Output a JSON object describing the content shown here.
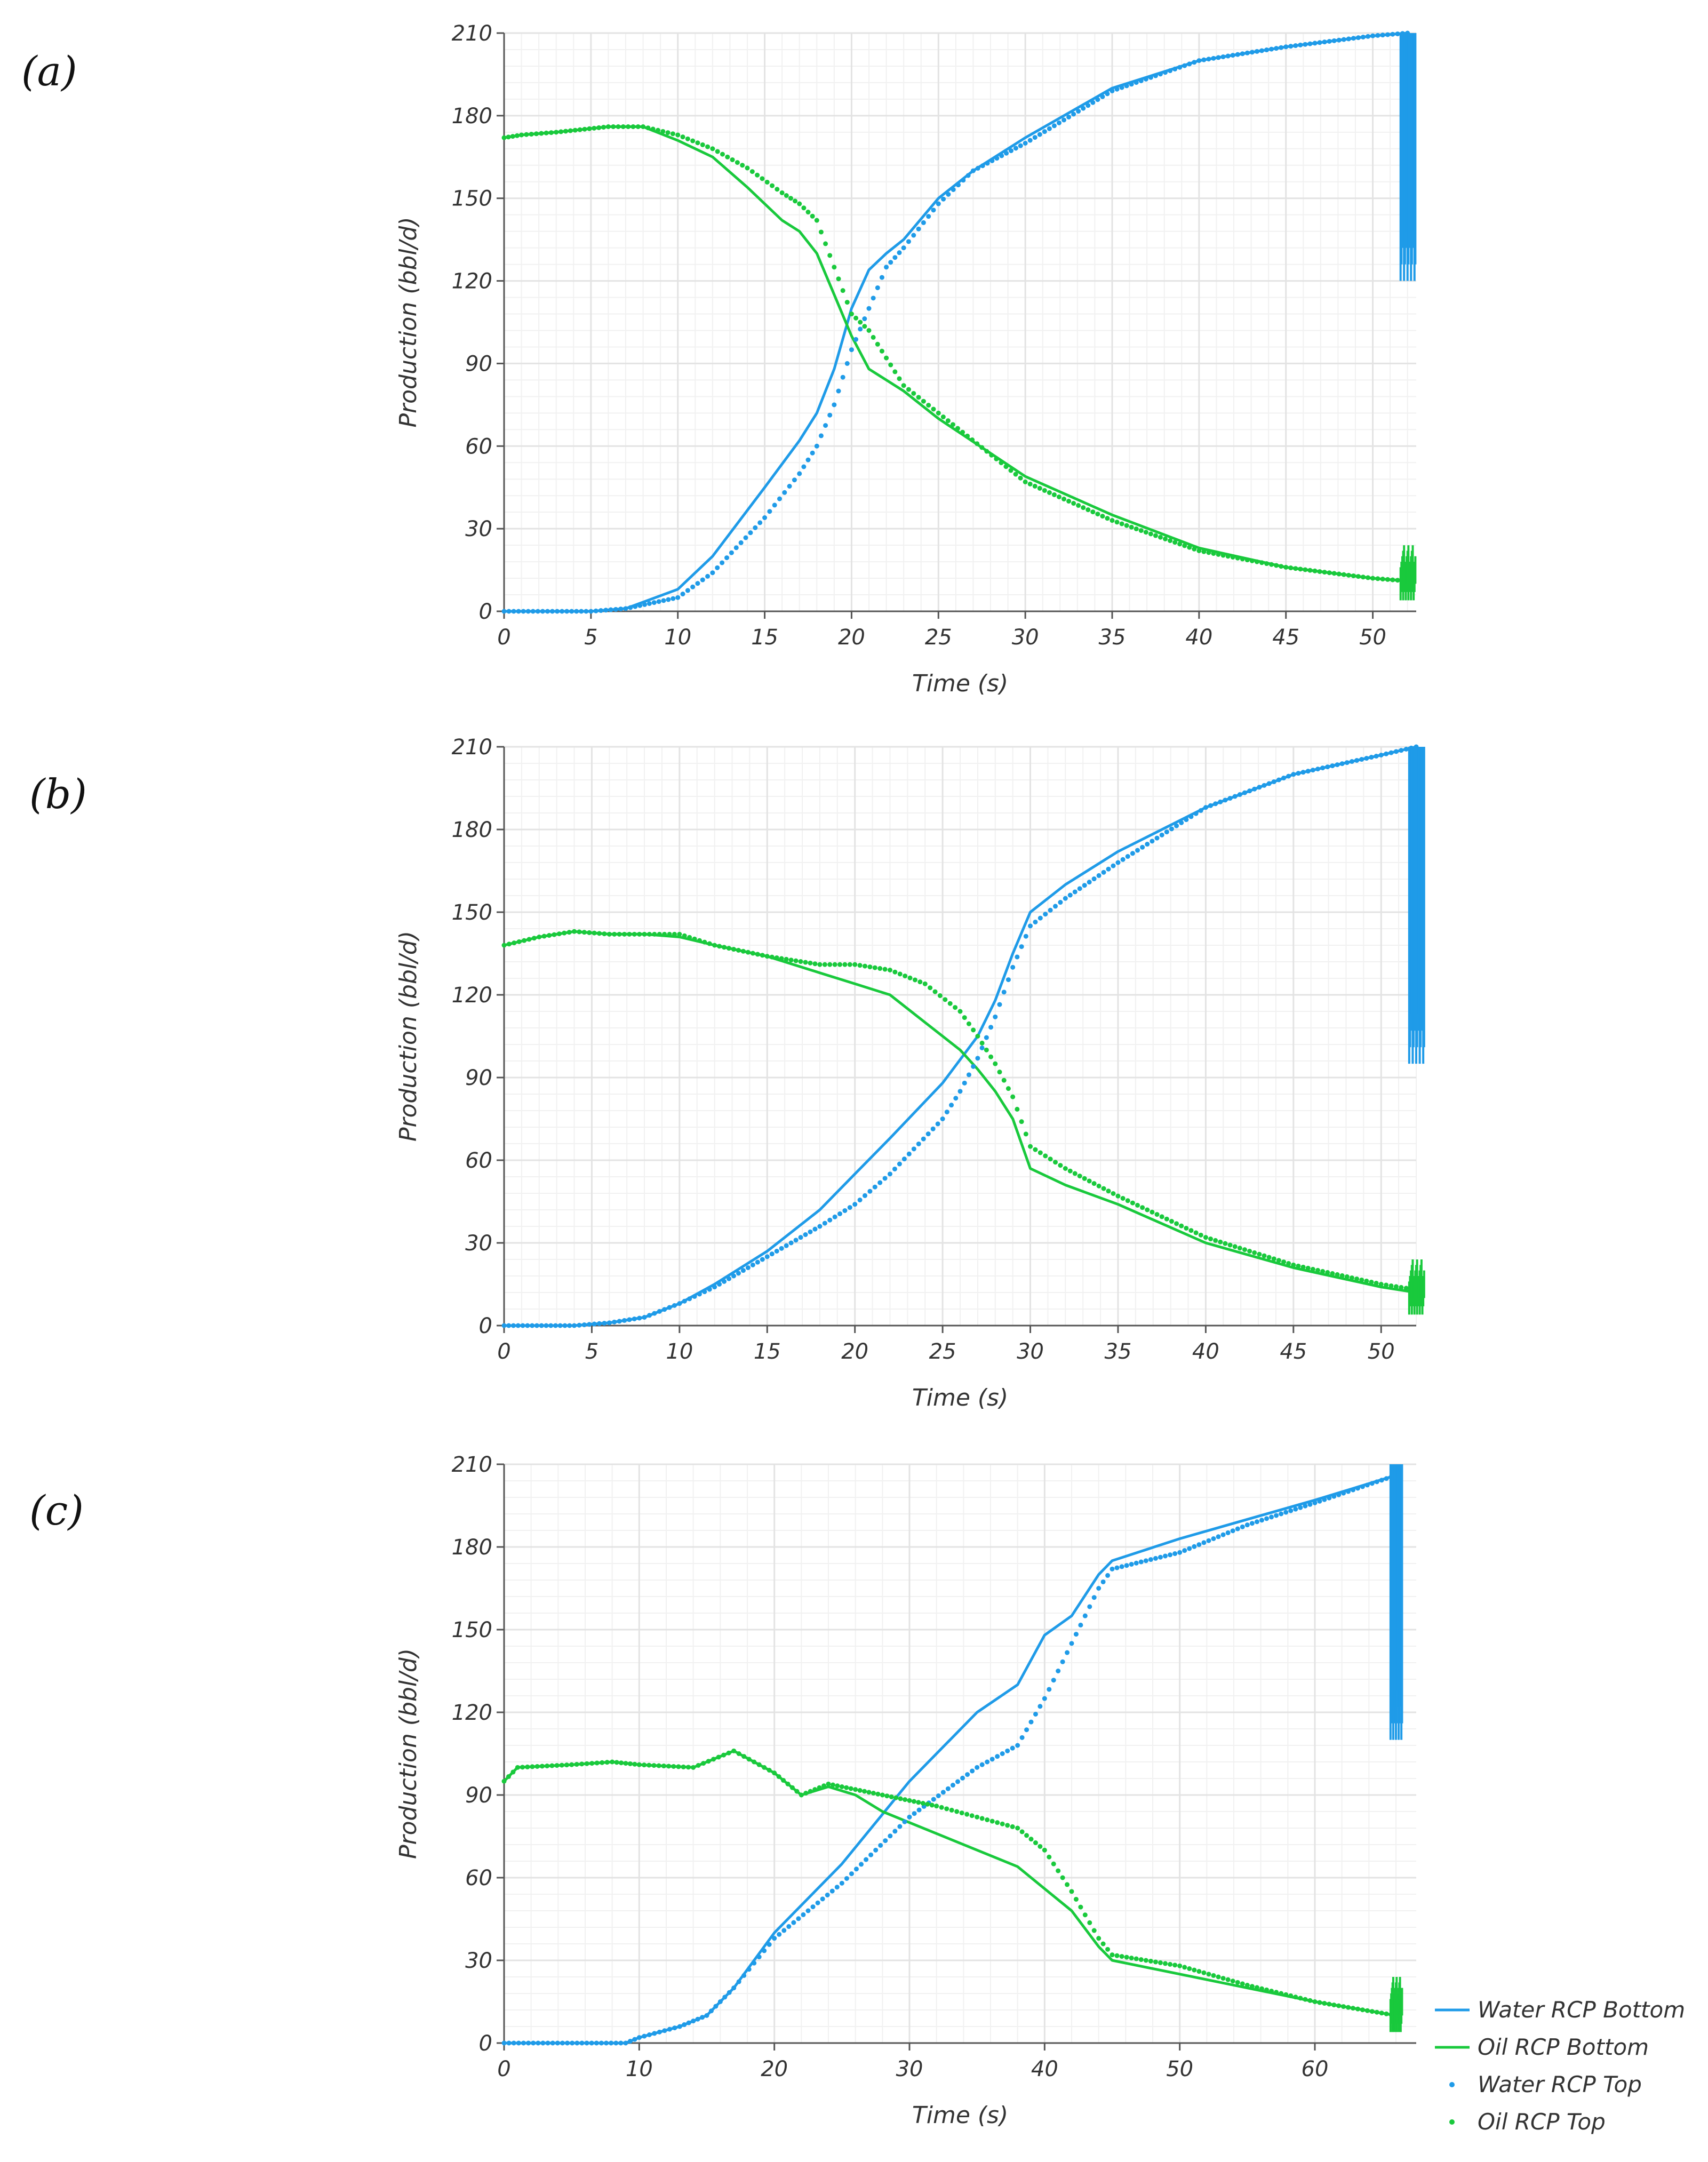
{
  "panel_labels": [
    "(a)",
    "(b)",
    "(c)"
  ],
  "colors": {
    "water": "#1f9be8",
    "oil": "#19c93c",
    "grid": "#e3e3e3",
    "frame": "#555555"
  },
  "legend": [
    {
      "label": "Water RCP Bottom",
      "color": "#1f9be8",
      "style": "line"
    },
    {
      "label": "Oil RCP Bottom",
      "color": "#19c93c",
      "style": "line"
    },
    {
      "label": "Water RCP Top",
      "color": "#1f9be8",
      "style": "dots"
    },
    {
      "label": "Oil RCP Top",
      "color": "#19c93c",
      "style": "dots"
    }
  ],
  "chart_data": [
    {
      "type": "line",
      "panel": "(a)",
      "xlabel": "Time (s)",
      "ylabel": "Production (bbl/d)",
      "xlim": [
        0,
        52.5
      ],
      "ylim": [
        0,
        210
      ],
      "xticks": [
        0,
        5,
        10,
        15,
        20,
        25,
        30,
        35,
        40,
        45,
        50
      ],
      "yticks": [
        0,
        30,
        60,
        90,
        120,
        150,
        180,
        210
      ],
      "grid": true,
      "series": [
        {
          "name": "Water RCP Bottom",
          "style": "line",
          "x": [
            0,
            5,
            7,
            10,
            12,
            15,
            17,
            18,
            19,
            20,
            21,
            22,
            23,
            25,
            27,
            30,
            35,
            40,
            45,
            50,
            52
          ],
          "y": [
            0,
            0,
            1,
            8,
            20,
            45,
            62,
            72,
            88,
            110,
            124,
            130,
            135,
            150,
            160,
            172,
            190,
            200,
            205,
            209,
            210
          ]
        },
        {
          "name": "Oil RCP Bottom",
          "style": "line",
          "x": [
            0,
            1,
            3,
            6,
            8,
            10,
            12,
            14,
            16,
            17,
            18,
            19,
            20,
            21,
            23,
            25,
            30,
            35,
            40,
            45,
            50,
            52
          ],
          "y": [
            172,
            173,
            174,
            176,
            176,
            171,
            165,
            154,
            142,
            138,
            130,
            115,
            100,
            88,
            80,
            70,
            49,
            35,
            23,
            16,
            12,
            11
          ]
        },
        {
          "name": "Water RCP Top",
          "style": "dots",
          "x": [
            0,
            5,
            7,
            10,
            12,
            15,
            17,
            18,
            19,
            20,
            21,
            22,
            23,
            25,
            27,
            30,
            35,
            40,
            45,
            50,
            52
          ],
          "y": [
            0,
            0,
            1,
            5,
            14,
            34,
            50,
            60,
            75,
            95,
            110,
            125,
            132,
            148,
            160,
            170,
            189,
            200,
            205,
            209,
            210
          ]
        },
        {
          "name": "Oil RCP Top",
          "style": "dots",
          "x": [
            0,
            1,
            3,
            6,
            8,
            10,
            12,
            14,
            16,
            17,
            18,
            19,
            20,
            21,
            22,
            23,
            25,
            30,
            35,
            40,
            45,
            50,
            52
          ],
          "y": [
            172,
            173,
            174,
            176,
            176,
            173,
            168,
            161,
            152,
            148,
            142,
            125,
            108,
            102,
            92,
            82,
            72,
            47,
            33,
            22,
            16,
            12,
            11
          ]
        }
      ]
    },
    {
      "type": "line",
      "panel": "(b)",
      "xlabel": "Time (s)",
      "ylabel": "Production (bbl/d)",
      "xlim": [
        0,
        52
      ],
      "ylim": [
        0,
        210
      ],
      "xticks": [
        0,
        5,
        10,
        15,
        20,
        25,
        30,
        35,
        40,
        45,
        50
      ],
      "yticks": [
        0,
        30,
        60,
        90,
        120,
        150,
        180,
        210
      ],
      "grid": true,
      "series": [
        {
          "name": "Water RCP Bottom",
          "style": "line",
          "x": [
            0,
            4,
            6,
            8,
            10,
            12,
            15,
            18,
            20,
            22,
            25,
            27,
            28,
            29,
            30,
            32,
            35,
            40,
            45,
            50,
            52
          ],
          "y": [
            0,
            0,
            1,
            3,
            8,
            15,
            27,
            42,
            55,
            68,
            88,
            105,
            118,
            135,
            150,
            160,
            172,
            188,
            200,
            207,
            210
          ]
        },
        {
          "name": "Oil RCP Bottom",
          "style": "line",
          "x": [
            0,
            2,
            4,
            6,
            8,
            10,
            12,
            15,
            18,
            20,
            22,
            24,
            26,
            27,
            28,
            29,
            30,
            32,
            35,
            40,
            45,
            50,
            52
          ],
          "y": [
            138,
            141,
            143,
            142,
            142,
            141,
            138,
            134,
            128,
            124,
            120,
            110,
            100,
            93,
            85,
            75,
            57,
            51,
            44,
            30,
            21,
            14,
            12
          ]
        },
        {
          "name": "Water RCP Top",
          "style": "dots",
          "x": [
            0,
            4,
            6,
            8,
            10,
            12,
            15,
            18,
            20,
            22,
            25,
            26,
            27,
            28,
            29,
            30,
            32,
            35,
            40,
            45,
            50,
            52
          ],
          "y": [
            0,
            0,
            1,
            3,
            8,
            14,
            25,
            36,
            44,
            55,
            75,
            85,
            97,
            112,
            130,
            145,
            155,
            168,
            188,
            200,
            207,
            210
          ]
        },
        {
          "name": "Oil RCP Top",
          "style": "dots",
          "x": [
            0,
            2,
            4,
            6,
            8,
            10,
            12,
            15,
            18,
            20,
            22,
            24,
            26,
            27,
            28,
            29,
            30,
            32,
            35,
            40,
            45,
            50,
            52
          ],
          "y": [
            138,
            141,
            143,
            142,
            142,
            142,
            138,
            134,
            131,
            131,
            129,
            124,
            114,
            105,
            95,
            83,
            65,
            57,
            47,
            32,
            22,
            15,
            13
          ]
        }
      ]
    },
    {
      "type": "line",
      "panel": "(c)",
      "xlabel": "Time (s)",
      "ylabel": "Production (bbl/d)",
      "xlim": [
        0,
        67.5
      ],
      "ylim": [
        0,
        210
      ],
      "xticks": [
        0,
        10,
        20,
        30,
        40,
        50,
        60
      ],
      "yticks": [
        0,
        30,
        60,
        90,
        120,
        150,
        180,
        210
      ],
      "grid": true,
      "series": [
        {
          "name": "Water RCP Bottom",
          "style": "line",
          "x": [
            0,
            9,
            10,
            13,
            15,
            17,
            20,
            25,
            30,
            35,
            38,
            40,
            42,
            44,
            45,
            50,
            55,
            60,
            66
          ],
          "y": [
            0,
            0,
            2,
            6,
            10,
            20,
            40,
            65,
            95,
            120,
            130,
            148,
            155,
            170,
            175,
            183,
            190,
            197,
            206
          ]
        },
        {
          "name": "Oil RCP Bottom",
          "style": "line",
          "x": [
            0,
            1,
            5,
            8,
            10,
            14,
            17,
            20,
            22,
            24,
            26,
            28,
            30,
            32,
            35,
            38,
            40,
            42,
            44,
            45,
            50,
            55,
            60,
            66
          ],
          "y": [
            95,
            100,
            101,
            102,
            101,
            100,
            106,
            98,
            90,
            93,
            90,
            84,
            80,
            76,
            70,
            64,
            56,
            48,
            35,
            30,
            25,
            20,
            15,
            10
          ]
        },
        {
          "name": "Water RCP Top",
          "style": "dots",
          "x": [
            0,
            9,
            10,
            13,
            15,
            17,
            20,
            25,
            30,
            35,
            38,
            40,
            42,
            44,
            45,
            50,
            55,
            60,
            66
          ],
          "y": [
            0,
            0,
            2,
            6,
            10,
            20,
            38,
            58,
            82,
            100,
            108,
            125,
            145,
            165,
            172,
            178,
            188,
            196,
            206
          ]
        },
        {
          "name": "Oil RCP Top",
          "style": "dots",
          "x": [
            0,
            1,
            5,
            8,
            10,
            14,
            17,
            20,
            22,
            24,
            26,
            28,
            30,
            32,
            35,
            38,
            40,
            42,
            44,
            45,
            50,
            55,
            60,
            66
          ],
          "y": [
            95,
            100,
            101,
            102,
            101,
            100,
            106,
            98,
            90,
            94,
            92,
            90,
            88,
            86,
            82,
            78,
            70,
            55,
            38,
            32,
            28,
            21,
            15,
            10
          ]
        }
      ]
    }
  ]
}
